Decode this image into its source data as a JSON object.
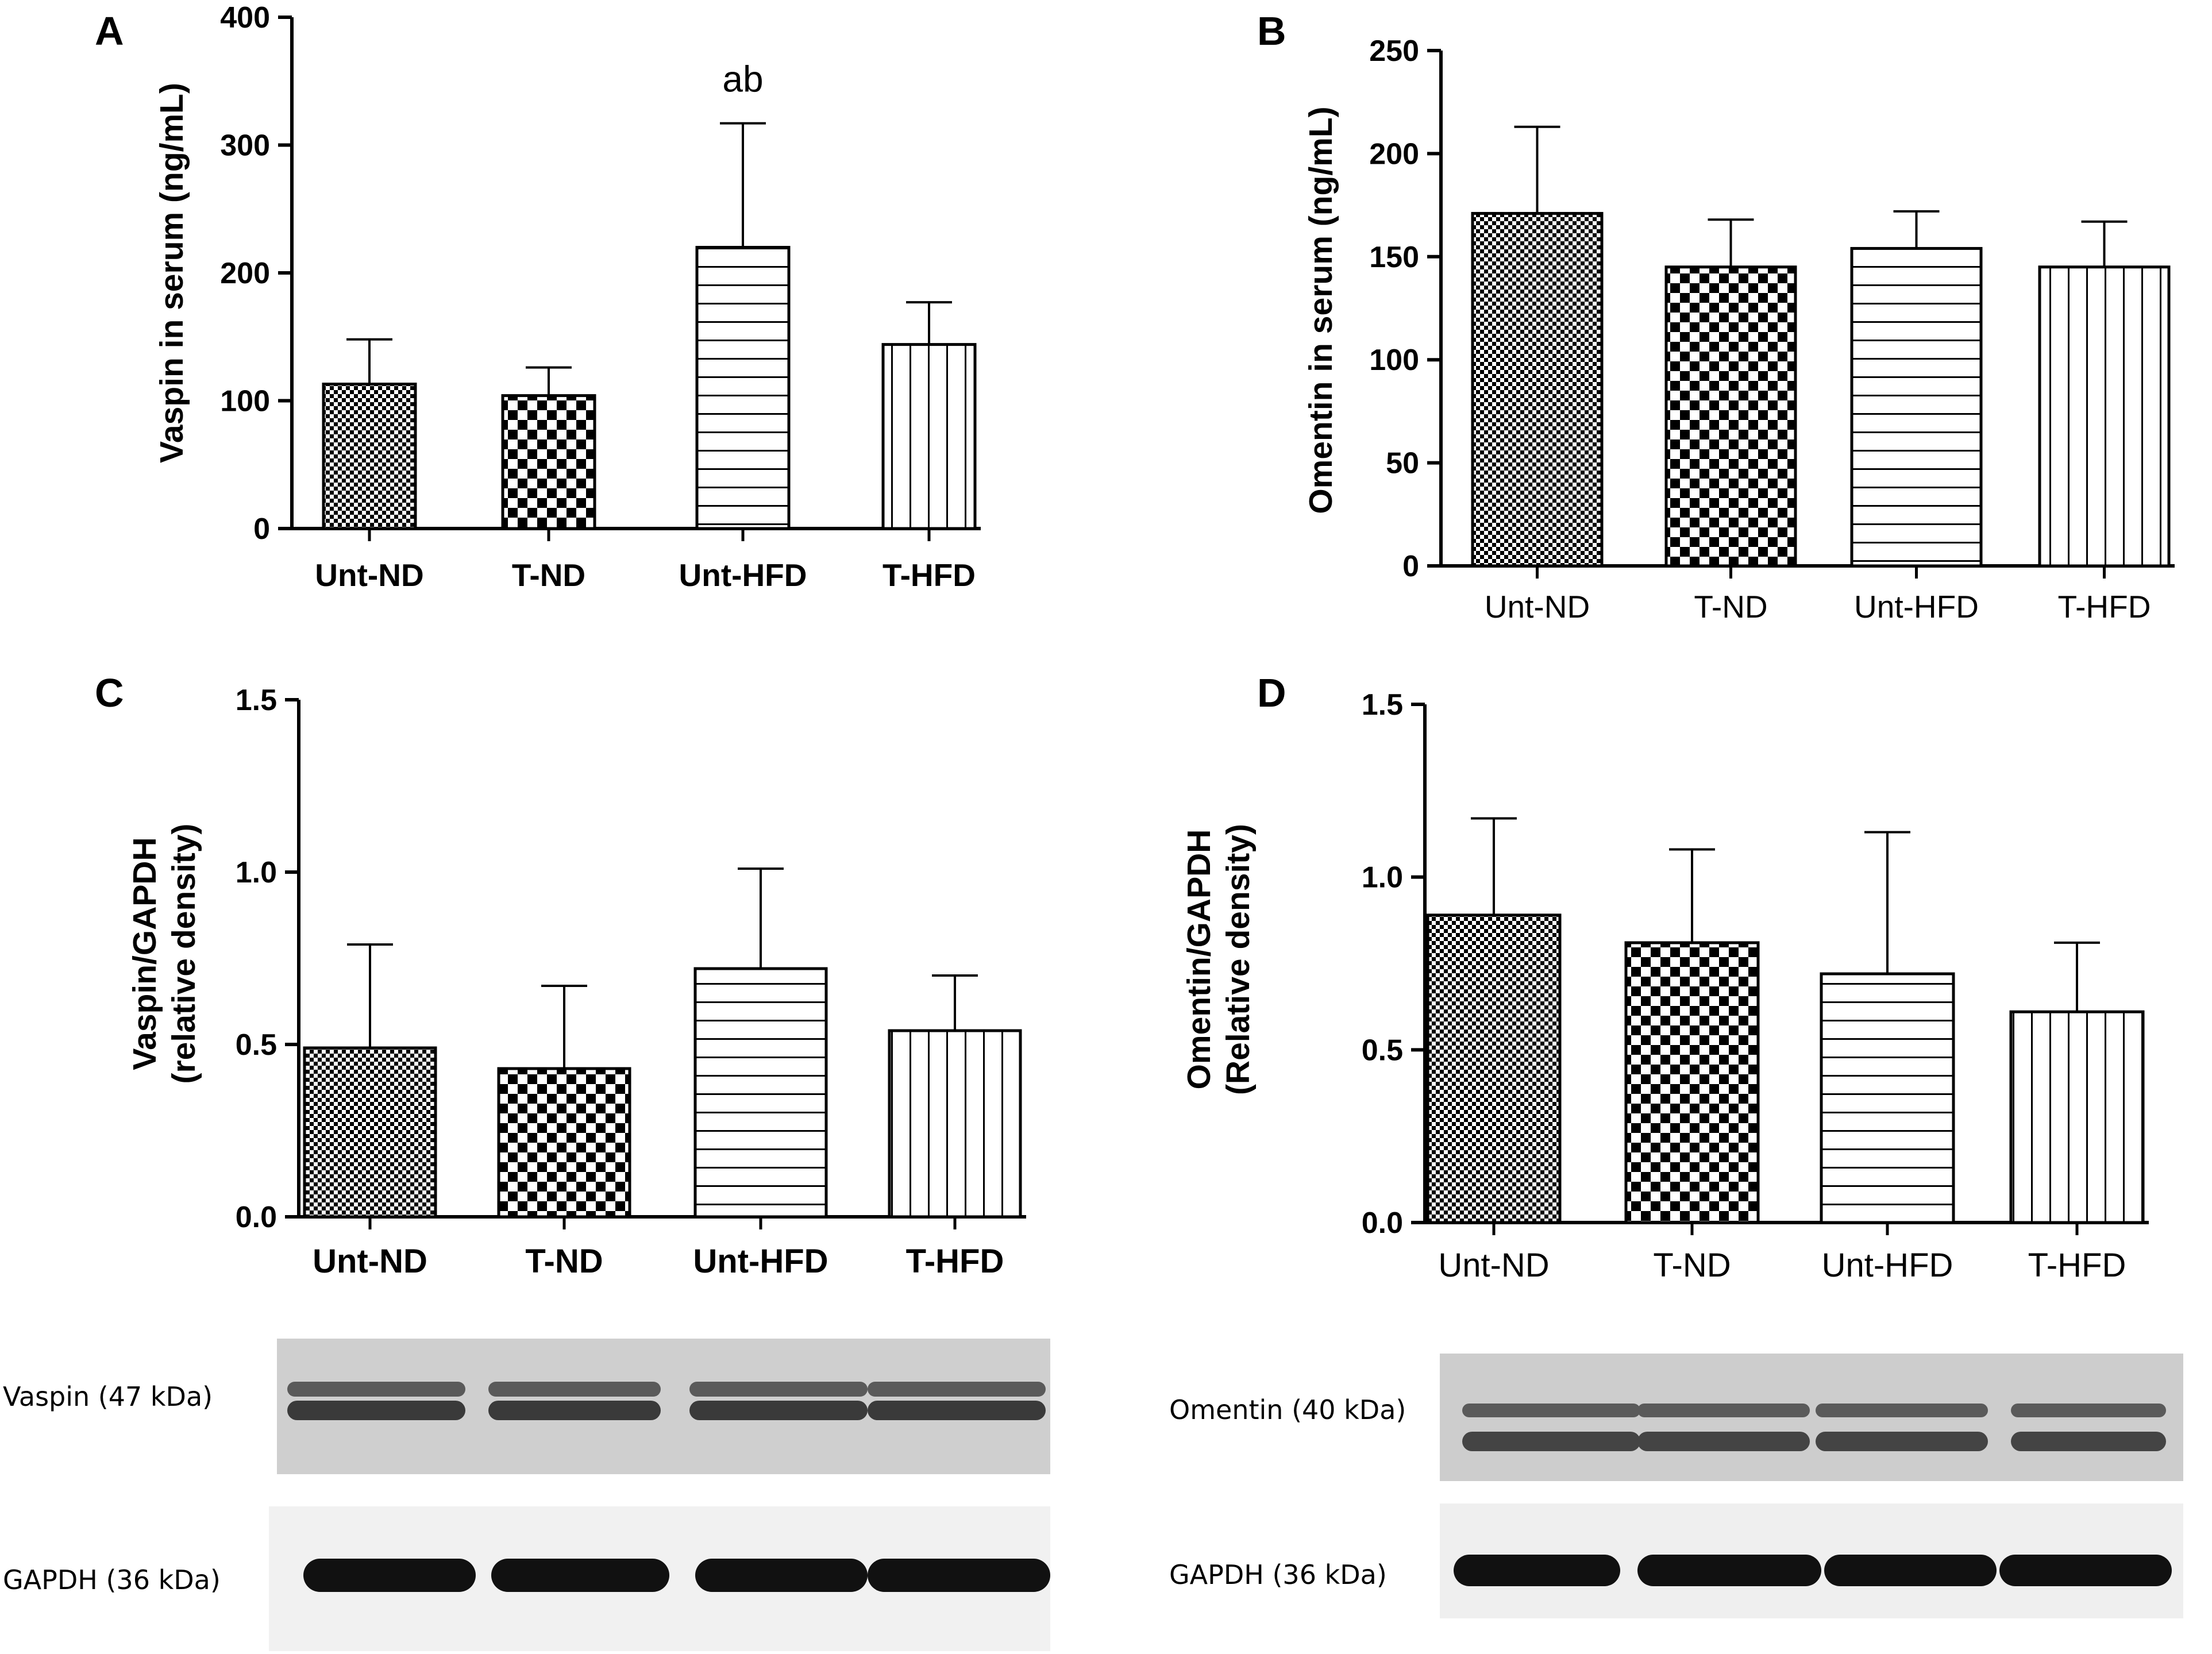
{
  "panels": [
    {
      "letter": "A"
    },
    {
      "letter": "B"
    },
    {
      "letter": "C"
    },
    {
      "letter": "D"
    }
  ],
  "chart_data": [
    {
      "id": "A",
      "type": "bar",
      "categories": [
        "Unt-ND",
        "T-ND",
        "Unt-HFD",
        "T-HFD"
      ],
      "values": [
        113,
        104,
        220,
        144
      ],
      "errors": [
        35,
        22,
        97,
        33
      ],
      "annotations": [
        {
          "category": "Unt-HFD",
          "text": "ab"
        }
      ],
      "ylabel": "Vaspin in serum (ng/mL)",
      "ylim": [
        0,
        400
      ],
      "yticks": [
        "0",
        "100",
        "200",
        "300",
        "400"
      ],
      "patterns": [
        "fine-check",
        "checker",
        "hlines",
        "vlines"
      ]
    },
    {
      "id": "B",
      "type": "bar",
      "categories": [
        "Unt-ND",
        "T-ND",
        "Unt-HFD",
        "T-HFD"
      ],
      "values": [
        171,
        145,
        154,
        145
      ],
      "errors": [
        42,
        23,
        18,
        22
      ],
      "ylabel": "Omentin in serum (ng/mL)",
      "ylim": [
        0,
        250
      ],
      "yticks": [
        "0",
        "50",
        "100",
        "150",
        "200",
        "250"
      ],
      "patterns": [
        "fine-check",
        "checker",
        "hlines",
        "vlines"
      ]
    },
    {
      "id": "C",
      "type": "bar",
      "categories": [
        "Unt-ND",
        "T-ND",
        "Unt-HFD",
        "T-HFD"
      ],
      "values": [
        0.49,
        0.43,
        0.72,
        0.54
      ],
      "errors": [
        0.3,
        0.24,
        0.29,
        0.16
      ],
      "ylabel_lines": [
        "Vaspin/GAPDH",
        "(relative density)"
      ],
      "ylim": [
        0,
        1.5
      ],
      "yticks": [
        "0.0",
        "0.5",
        "1.0",
        "1.5"
      ],
      "patterns": [
        "fine-check",
        "checker",
        "hlines",
        "vlines"
      ]
    },
    {
      "id": "D",
      "type": "bar",
      "categories": [
        "Unt-ND",
        "T-ND",
        "Unt-HFD",
        "T-HFD"
      ],
      "values": [
        0.89,
        0.81,
        0.72,
        0.61
      ],
      "errors": [
        0.28,
        0.27,
        0.41,
        0.2
      ],
      "ylabel_lines": [
        "Omentin/GAPDH",
        "(Relative density)"
      ],
      "ylim": [
        0,
        1.5
      ],
      "yticks": [
        "0.0",
        "0.5",
        "1.0",
        "1.5"
      ],
      "patterns": [
        "fine-check",
        "checker",
        "hlines",
        "vlines"
      ]
    }
  ],
  "blots": [
    {
      "id": "vaspin",
      "label": "Vaspin  (47 kDa)",
      "lanes": 4
    },
    {
      "id": "gapdh-c",
      "label": "GAPDH (36 kDa)",
      "lanes": 4
    },
    {
      "id": "omentin",
      "label": "Omentin (40 kDa)",
      "lanes": 4
    },
    {
      "id": "gapdh-d",
      "label": "GAPDH (36 kDa)",
      "lanes": 4
    }
  ]
}
